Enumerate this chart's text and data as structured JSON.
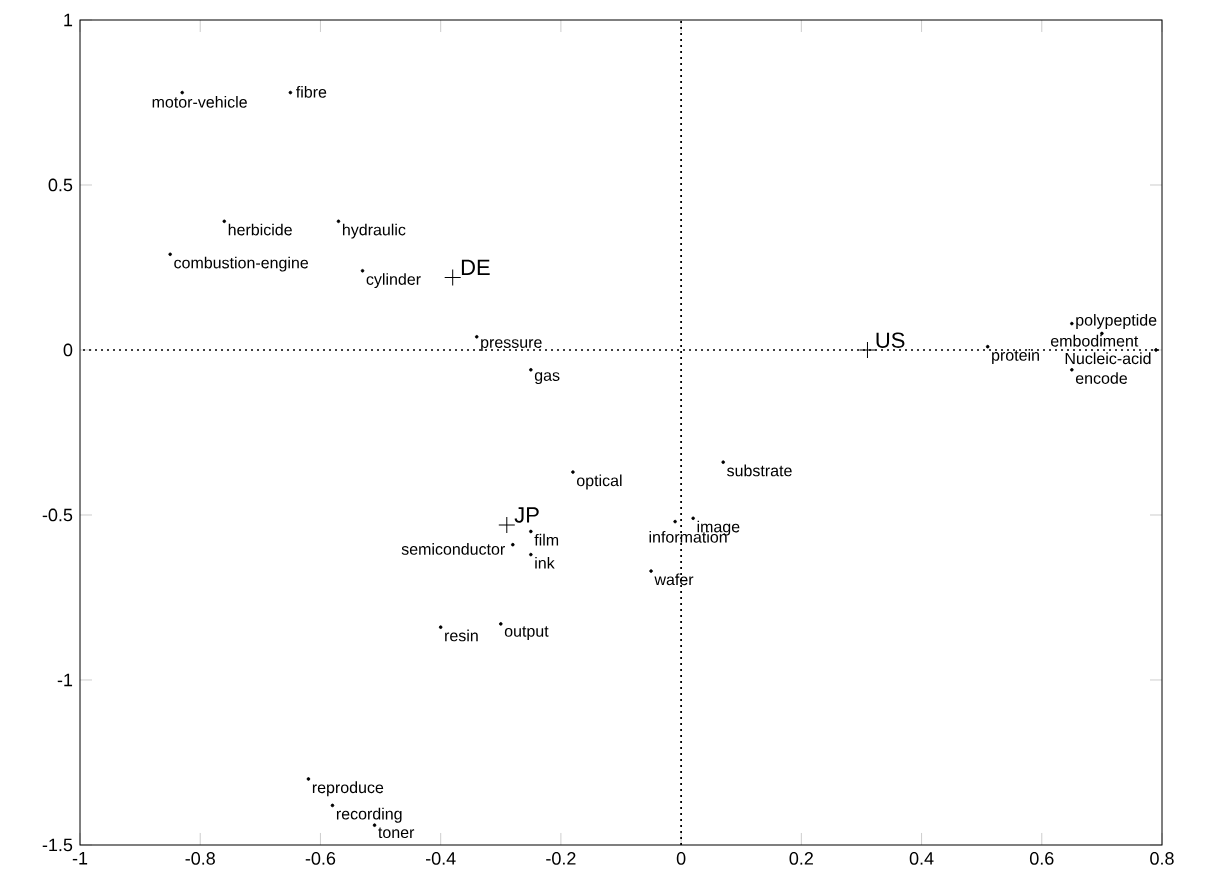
{
  "chart_data": {
    "type": "scatter",
    "xlim": [
      -1,
      0.8
    ],
    "ylim": [
      -1.5,
      1
    ],
    "xticks": [
      -1,
      -0.8,
      -0.6,
      -0.4,
      -0.2,
      0,
      0.2,
      0.4,
      0.6,
      0.8
    ],
    "yticks": [
      -1.5,
      -1,
      -0.5,
      0,
      0.5,
      1
    ],
    "series": [
      {
        "color": "#000000",
        "marker": "circle",
        "x": [
          -0.83,
          -0.65,
          -0.76,
          -0.57,
          -0.85,
          -0.53,
          -0.34,
          -0.25,
          0.65,
          0.7,
          0.51,
          0.79,
          0.65,
          0.07,
          -0.18,
          -0.25,
          -0.28,
          -0.25,
          0.02,
          -0.01,
          -0.05,
          -0.4,
          -0.3,
          -0.62,
          -0.58,
          -0.51
        ],
        "values": [
          0.78,
          0.78,
          0.39,
          0.39,
          0.29,
          0.24,
          0.04,
          -0.06,
          0.08,
          0.05,
          0.01,
          0.0,
          -0.06,
          -0.34,
          -0.37,
          -0.55,
          -0.59,
          -0.62,
          -0.51,
          -0.52,
          -0.67,
          -0.84,
          -0.83,
          -1.3,
          -1.38,
          -1.44
        ]
      },
      {
        "color": "#000000",
        "marker": "cross",
        "x": [
          -0.38,
          -0.29,
          0.31
        ],
        "values": [
          0.22,
          -0.53,
          0.0
        ]
      }
    ],
    "ref_lines": [
      {
        "axis": "x",
        "value": 0,
        "line_style": "dotted"
      },
      {
        "axis": "y",
        "value": 0,
        "line_style": "dotted"
      }
    ],
    "annotations": [
      {
        "text": "motor-vehicle",
        "x": -0.83,
        "y": 0.78
      },
      {
        "text": "fibre",
        "x": -0.65,
        "y": 0.78
      },
      {
        "text": "herbicide",
        "x": -0.76,
        "y": 0.39
      },
      {
        "text": "hydraulic",
        "x": -0.57,
        "y": 0.39
      },
      {
        "text": "combustion-engine",
        "x": -0.85,
        "y": 0.29
      },
      {
        "text": "cylinder",
        "x": -0.53,
        "y": 0.24
      },
      {
        "text": "pressure",
        "x": -0.34,
        "y": 0.04
      },
      {
        "text": "gas",
        "x": -0.25,
        "y": -0.06
      },
      {
        "text": "polypeptide",
        "x": 0.65,
        "y": 0.08
      },
      {
        "text": "embodiment",
        "x": 0.7,
        "y": 0.05
      },
      {
        "text": "protein",
        "x": 0.51,
        "y": 0.01
      },
      {
        "text": "Nucleic-acid",
        "x": 0.79,
        "y": 0.0
      },
      {
        "text": "encode",
        "x": 0.65,
        "y": -0.06
      },
      {
        "text": "substrate",
        "x": 0.07,
        "y": -0.34
      },
      {
        "text": "optical",
        "x": -0.18,
        "y": -0.37
      },
      {
        "text": "film",
        "x": -0.25,
        "y": -0.55
      },
      {
        "text": "semiconductor",
        "x": -0.28,
        "y": -0.59
      },
      {
        "text": "ink",
        "x": -0.25,
        "y": -0.62
      },
      {
        "text": "image",
        "x": 0.02,
        "y": -0.51
      },
      {
        "text": "information",
        "x": -0.01,
        "y": -0.52
      },
      {
        "text": "wafer",
        "x": -0.05,
        "y": -0.67
      },
      {
        "text": "resin",
        "x": -0.4,
        "y": -0.84
      },
      {
        "text": "output",
        "x": -0.3,
        "y": -0.83
      },
      {
        "text": "reproduce",
        "x": -0.62,
        "y": -1.3
      },
      {
        "text": "recording",
        "x": -0.58,
        "y": -1.38
      },
      {
        "text": "toner",
        "x": -0.51,
        "y": -1.44
      },
      {
        "text": "DE",
        "x": -0.38,
        "y": 0.22
      },
      {
        "text": "JP",
        "x": -0.29,
        "y": -0.53
      },
      {
        "text": "US",
        "x": 0.31,
        "y": 0.0
      }
    ]
  }
}
